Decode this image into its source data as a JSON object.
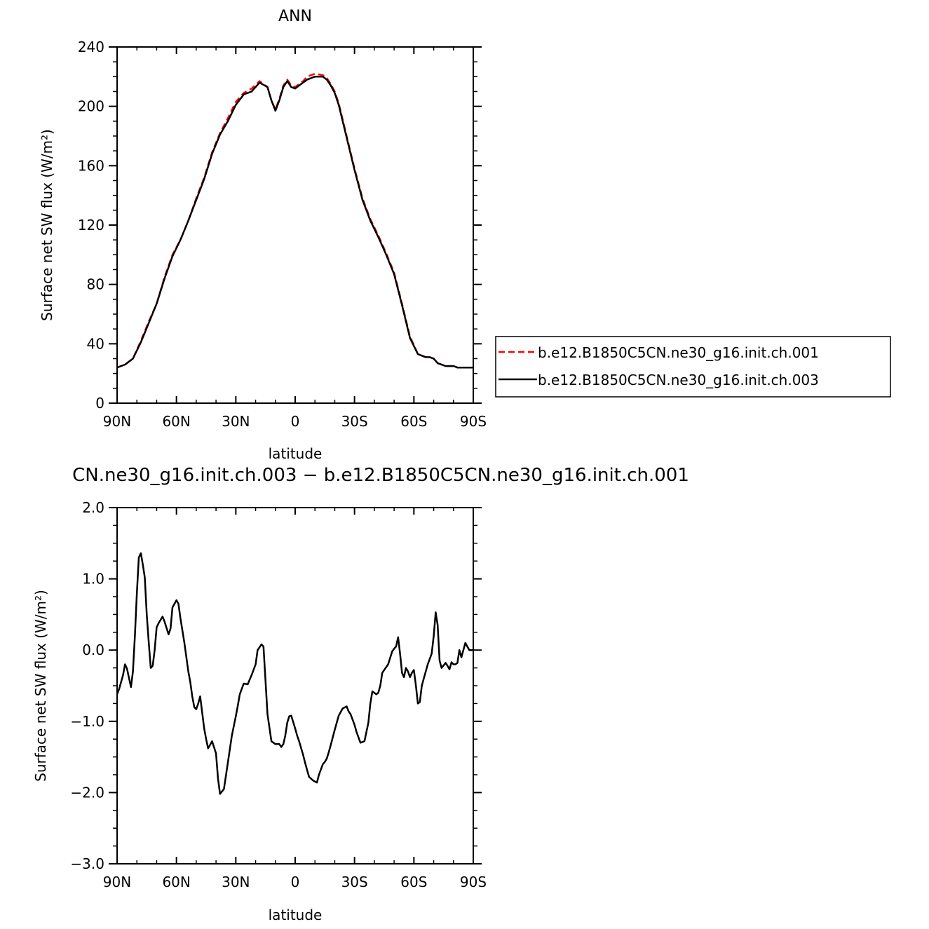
{
  "chart_data": [
    {
      "type": "line",
      "title": "ANN",
      "xlabel": "latitude",
      "ylabel": "Surface net SW flux (W/m²)",
      "xlim": [
        90,
        -90
      ],
      "ylim": [
        0,
        240
      ],
      "xticks": [
        {
          "value": 90,
          "label": "90N"
        },
        {
          "value": 60,
          "label": "60N"
        },
        {
          "value": 30,
          "label": "30N"
        },
        {
          "value": 0,
          "label": "0"
        },
        {
          "value": -30,
          "label": "30S"
        },
        {
          "value": -60,
          "label": "60S"
        },
        {
          "value": -90,
          "label": "90S"
        }
      ],
      "yticks": [
        {
          "value": 0,
          "label": "0"
        },
        {
          "value": 40,
          "label": "40"
        },
        {
          "value": 80,
          "label": "80"
        },
        {
          "value": 120,
          "label": "120"
        },
        {
          "value": 160,
          "label": "160"
        },
        {
          "value": 200,
          "label": "200"
        },
        {
          "value": 240,
          "label": "240"
        }
      ],
      "legend_position": "right",
      "series": [
        {
          "name": "b.e12.B1850C5CN.ne30_g16.init.ch.001",
          "color": "#ff0000",
          "dash": "dashed",
          "x": [
            90,
            86,
            82,
            78,
            74,
            70,
            66,
            62,
            58,
            54,
            50,
            46,
            42,
            38,
            34,
            30,
            26,
            22,
            18,
            14,
            12,
            10,
            8,
            6,
            4,
            2,
            0,
            -2,
            -4,
            -6,
            -8,
            -10,
            -14,
            -16,
            -18,
            -20,
            -22,
            -26,
            -30,
            -34,
            -38,
            -42,
            -46,
            -50,
            -54,
            -58,
            -62,
            -66,
            -68,
            -70,
            -72,
            -74,
            -76,
            -78,
            -80,
            -82,
            -86,
            -90
          ],
          "y": [
            24,
            26,
            30,
            42,
            55,
            67,
            85,
            100,
            110,
            123,
            138,
            152,
            169,
            182,
            192,
            203,
            209,
            212,
            217,
            213,
            204,
            198,
            205,
            214,
            218,
            214,
            213,
            215,
            217,
            220,
            221,
            222,
            221,
            219,
            215,
            210,
            202,
            180,
            158,
            138,
            124,
            113,
            101,
            88,
            67,
            45,
            33,
            31,
            31,
            30,
            27,
            26,
            25,
            25,
            25,
            24,
            24,
            24
          ]
        },
        {
          "name": "b.e12.B1850C5CN.ne30_g16.init.ch.003",
          "color": "#000000",
          "dash": "solid",
          "x": [
            90,
            86,
            82,
            78,
            74,
            70,
            66,
            62,
            58,
            54,
            50,
            46,
            42,
            38,
            34,
            30,
            26,
            22,
            18,
            14,
            12,
            10,
            8,
            6,
            4,
            2,
            0,
            -2,
            -4,
            -6,
            -8,
            -10,
            -14,
            -16,
            -18,
            -20,
            -22,
            -26,
            -30,
            -34,
            -38,
            -42,
            -46,
            -50,
            -54,
            -58,
            -62,
            -66,
            -68,
            -70,
            -72,
            -74,
            -76,
            -78,
            -80,
            -82,
            -86,
            -90
          ],
          "y": [
            24,
            26,
            30,
            41,
            54,
            67,
            84,
            99,
            110,
            123,
            137,
            151,
            168,
            181,
            190,
            201,
            208,
            210,
            216,
            213,
            204,
            197,
            204,
            213,
            217,
            213,
            212,
            214,
            216,
            218,
            219,
            220,
            220,
            218,
            214,
            209,
            201,
            179,
            157,
            137,
            123,
            112,
            100,
            87,
            66,
            44,
            33,
            31,
            31,
            30,
            27,
            26,
            25,
            25,
            25,
            24,
            24,
            24
          ]
        }
      ]
    },
    {
      "type": "line",
      "title": "CN.ne30_g16.init.ch.003 − b.e12.B1850C5CN.ne30_g16.init.ch.001",
      "xlabel": "latitude",
      "ylabel": "Surface net SW flux (W/m²)",
      "xlim": [
        90,
        -90
      ],
      "ylim": [
        -3,
        2
      ],
      "xticks": [
        {
          "value": 90,
          "label": "90N"
        },
        {
          "value": 60,
          "label": "60N"
        },
        {
          "value": 30,
          "label": "30N"
        },
        {
          "value": 0,
          "label": "0"
        },
        {
          "value": -30,
          "label": "30S"
        },
        {
          "value": -60,
          "label": "60S"
        },
        {
          "value": -90,
          "label": "90S"
        }
      ],
      "yticks": [
        {
          "value": -3,
          "label": "−3.0"
        },
        {
          "value": -2,
          "label": "−2.0"
        },
        {
          "value": -1,
          "label": "−1.0"
        },
        {
          "value": 0,
          "label": "0.0"
        },
        {
          "value": 1,
          "label": "1.0"
        },
        {
          "value": 2,
          "label": "2.0"
        }
      ],
      "series": [
        {
          "color": "#000000",
          "dash": "solid",
          "x": [
            90,
            89,
            87,
            86,
            85,
            83,
            82,
            81,
            80,
            79,
            78,
            77,
            76,
            75,
            74,
            73,
            72,
            71,
            70,
            69,
            67,
            66,
            64,
            63,
            62,
            60,
            59,
            58,
            56,
            54,
            53,
            52,
            51,
            50,
            49,
            48,
            46,
            45,
            44,
            42,
            40,
            39,
            38,
            36,
            34,
            32,
            30,
            29,
            28,
            26,
            24,
            22,
            20,
            19,
            17,
            16,
            14,
            12,
            10,
            8,
            7,
            6,
            5,
            4,
            3,
            2,
            0,
            -1,
            -2,
            -4,
            -5,
            -6,
            -7,
            -9,
            -11,
            -12,
            -14,
            -15,
            -16,
            -17,
            -18,
            -20,
            -22,
            -24,
            -26,
            -27,
            -28,
            -30,
            -31,
            -33,
            -35,
            -37,
            -38,
            -39,
            -41,
            -42,
            -43,
            -44,
            -45,
            -47,
            -49,
            -50,
            -51,
            -52,
            -53,
            -54,
            -55,
            -56,
            -57,
            -58,
            -59,
            -60,
            -61,
            -62,
            -63,
            -64,
            -65,
            -67,
            -69,
            -70,
            -71,
            -72,
            -73,
            -74,
            -76,
            -77,
            -78,
            -79,
            -80,
            -81,
            -82,
            -83,
            -84,
            -85,
            -86,
            -87,
            -88,
            -89,
            -90
          ],
          "y": [
            -0.62,
            -0.55,
            -0.35,
            -0.2,
            -0.26,
            -0.52,
            -0.3,
            0.2,
            0.8,
            1.3,
            1.36,
            1.2,
            1.02,
            0.5,
            0.1,
            -0.25,
            -0.22,
            0.0,
            0.32,
            0.38,
            0.47,
            0.4,
            0.22,
            0.3,
            0.6,
            0.7,
            0.65,
            0.45,
            0.1,
            -0.3,
            -0.45,
            -0.65,
            -0.8,
            -0.83,
            -0.75,
            -0.65,
            -1.1,
            -1.25,
            -1.38,
            -1.28,
            -1.45,
            -1.8,
            -2.02,
            -1.95,
            -1.58,
            -1.2,
            -0.93,
            -0.78,
            -0.62,
            -0.47,
            -0.48,
            -0.35,
            -0.2,
            0.0,
            0.08,
            0.05,
            -0.9,
            -1.28,
            -1.32,
            -1.32,
            -1.36,
            -1.32,
            -1.2,
            -1.02,
            -0.93,
            -0.92,
            -1.1,
            -1.2,
            -1.28,
            -1.47,
            -1.58,
            -1.68,
            -1.78,
            -1.83,
            -1.86,
            -1.75,
            -1.6,
            -1.57,
            -1.52,
            -1.43,
            -1.33,
            -1.12,
            -0.92,
            -0.82,
            -0.79,
            -0.86,
            -0.9,
            -1.05,
            -1.15,
            -1.3,
            -1.28,
            -1.02,
            -0.75,
            -0.58,
            -0.62,
            -0.6,
            -0.5,
            -0.32,
            -0.28,
            -0.2,
            -0.02,
            0.02,
            0.05,
            0.18,
            -0.05,
            -0.32,
            -0.38,
            -0.25,
            -0.3,
            -0.38,
            -0.32,
            -0.28,
            -0.5,
            -0.75,
            -0.73,
            -0.5,
            -0.4,
            -0.2,
            -0.05,
            0.2,
            0.53,
            0.35,
            -0.15,
            -0.25,
            -0.18,
            -0.22,
            -0.27,
            -0.17,
            -0.2,
            -0.2,
            -0.18,
            0.0,
            -0.1,
            0.0,
            0.1,
            0.05,
            0.0,
            0.0,
            0.0
          ]
        }
      ]
    }
  ]
}
